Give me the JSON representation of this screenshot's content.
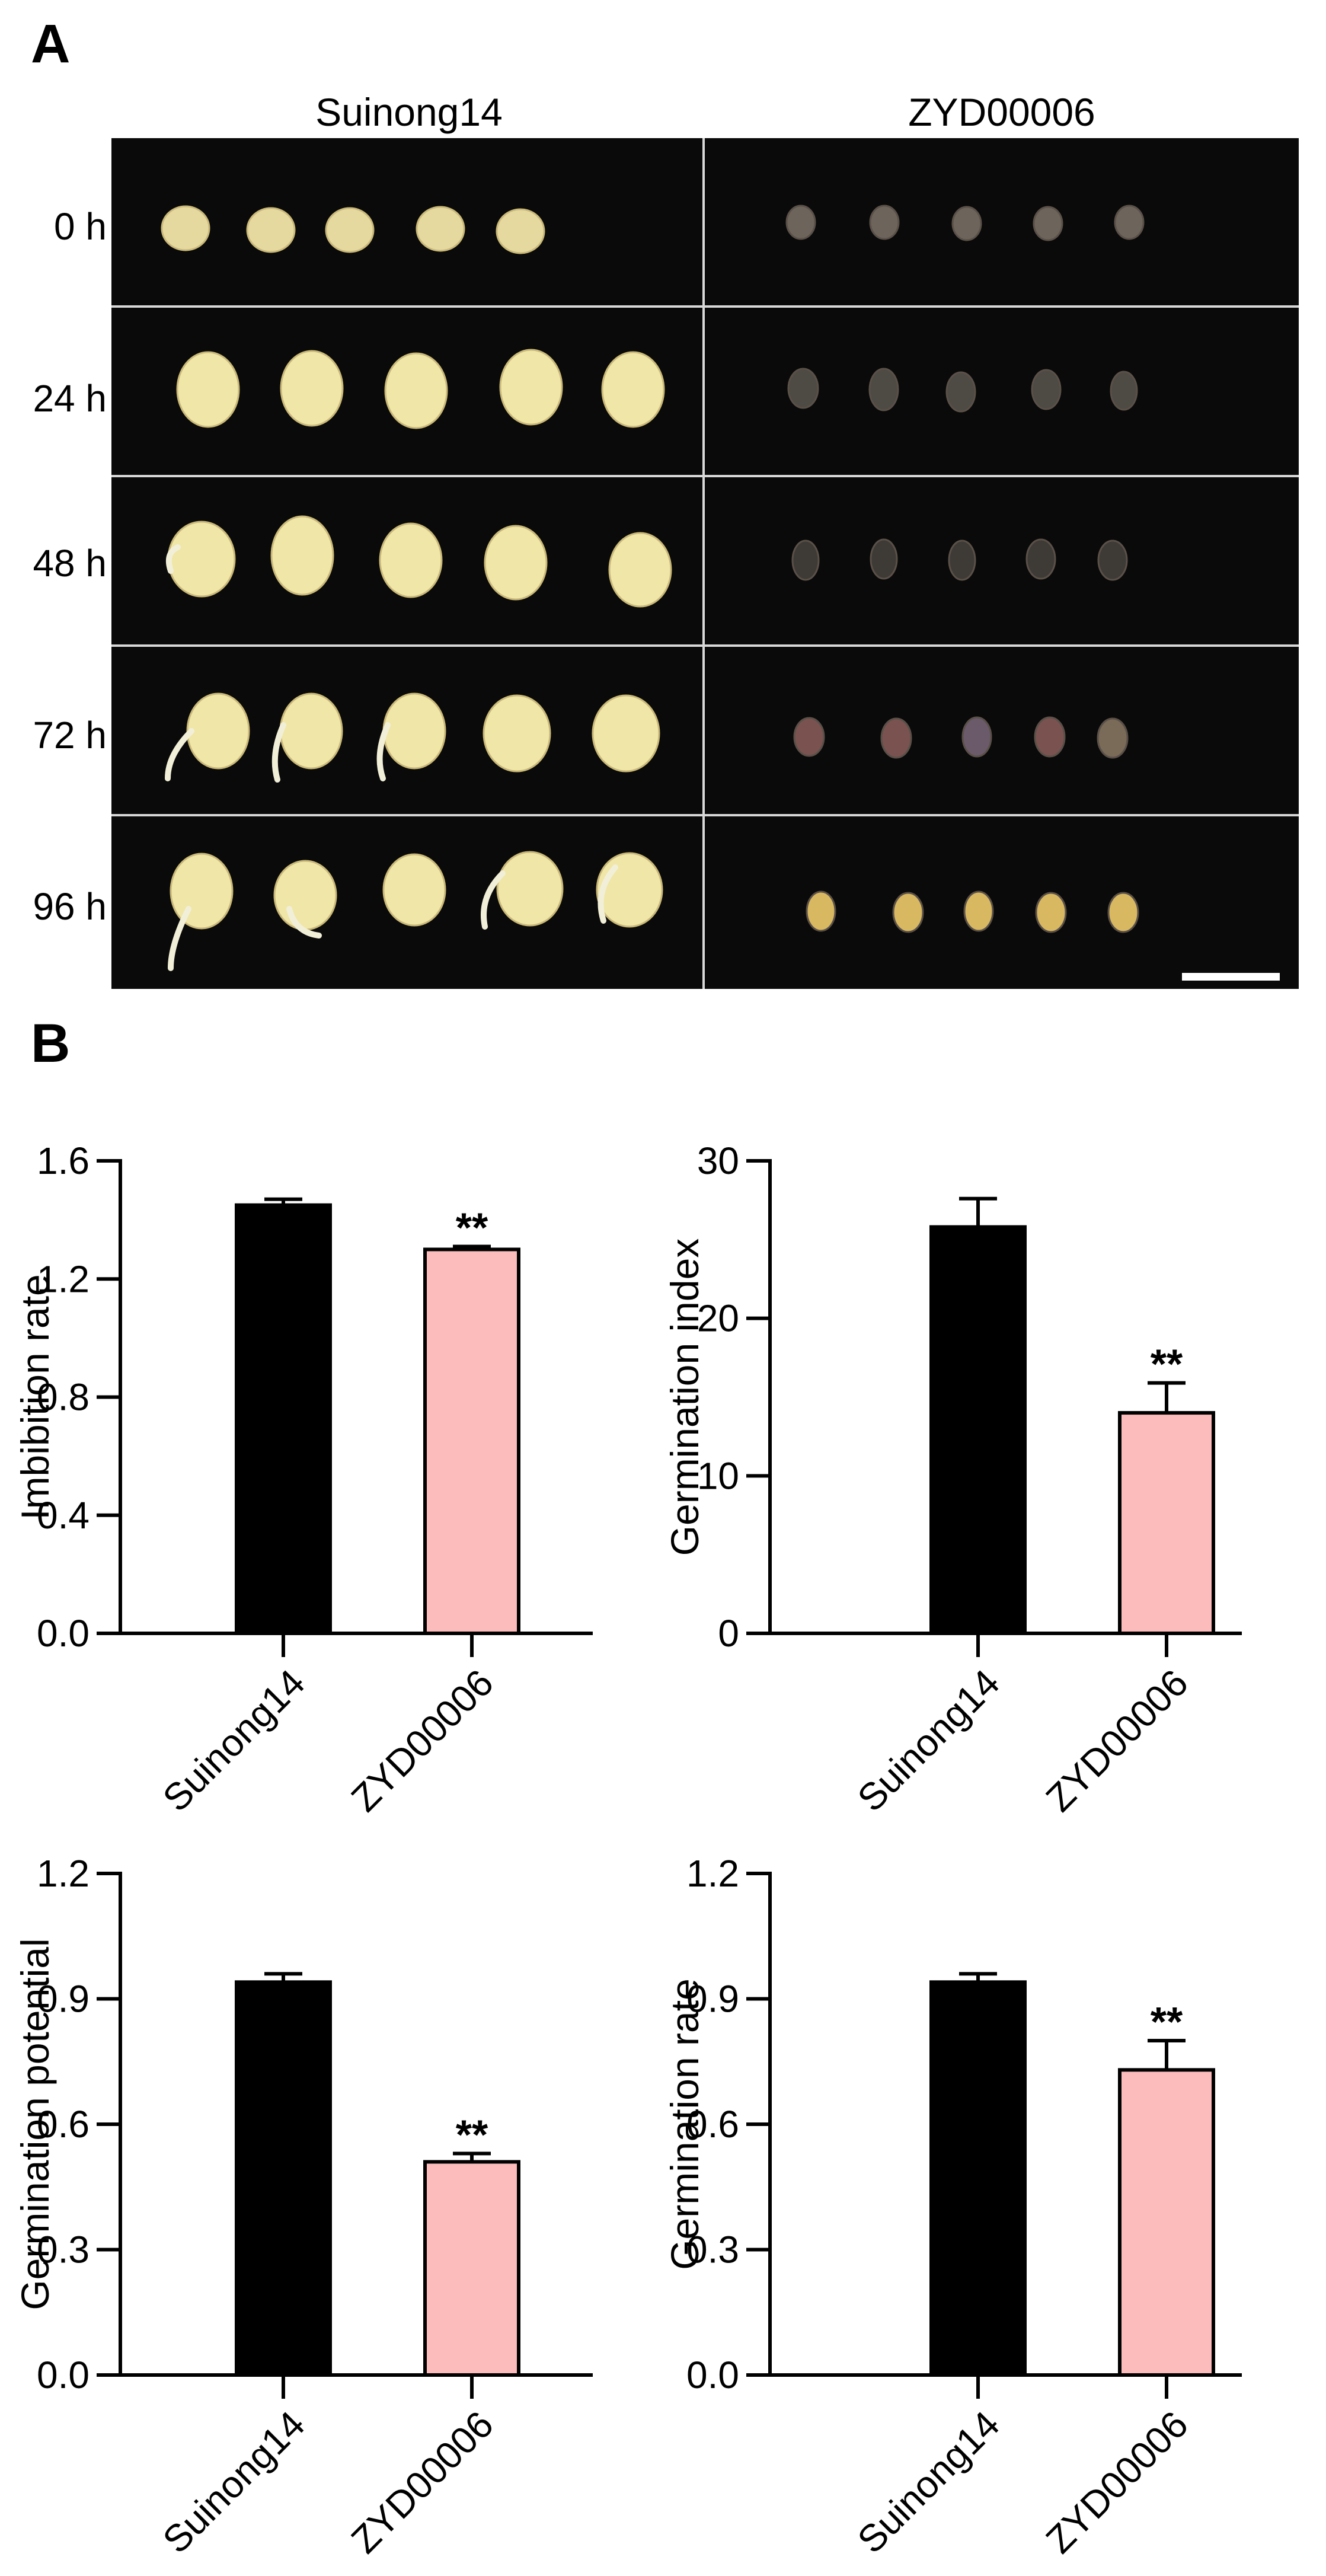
{
  "panels": {
    "a_label": "A",
    "b_label": "B"
  },
  "photo_panel": {
    "columns": [
      "Suinong14",
      "ZYD00006"
    ],
    "rows": [
      "0 h",
      "24 h",
      "48 h",
      "72 h",
      "96 h"
    ]
  },
  "chart_data": [
    {
      "type": "bar",
      "categories": [
        "Suinong14",
        "ZYD00006"
      ],
      "values": [
        1.45,
        1.3
      ],
      "errors": [
        0.02,
        0.01
      ],
      "significance": [
        "",
        "**"
      ],
      "colors": [
        "#000000",
        "#fdbcbc"
      ],
      "xlabel": "",
      "ylabel": "Imbibition rate",
      "ylim": [
        0,
        1.6
      ],
      "yticks": [
        "0.0",
        "0.4",
        "0.8",
        "1.2",
        "1.6"
      ],
      "grid": false
    },
    {
      "type": "bar",
      "categories": [
        "Suinong14",
        "ZYD00006"
      ],
      "values": [
        25.8,
        14.0
      ],
      "errors": [
        1.8,
        1.9
      ],
      "significance": [
        "",
        "**"
      ],
      "colors": [
        "#000000",
        "#fdbcbc"
      ],
      "xlabel": "",
      "ylabel": "Germination index",
      "ylim": [
        0,
        30
      ],
      "yticks": [
        "0",
        "10",
        "20",
        "30"
      ],
      "grid": false
    },
    {
      "type": "bar",
      "categories": [
        "Suinong14",
        "ZYD00006"
      ],
      "values": [
        0.94,
        0.51
      ],
      "errors": [
        0.02,
        0.02
      ],
      "significance": [
        "",
        "**"
      ],
      "colors": [
        "#000000",
        "#fdbcbc"
      ],
      "xlabel": "",
      "ylabel": "Germination potential",
      "ylim": [
        0,
        1.2
      ],
      "yticks": [
        "0.0",
        "0.3",
        "0.6",
        "0.9",
        "1.2"
      ],
      "grid": false
    },
    {
      "type": "bar",
      "categories": [
        "Suinong14",
        "ZYD00006"
      ],
      "values": [
        0.94,
        0.73
      ],
      "errors": [
        0.02,
        0.07
      ],
      "significance": [
        "",
        "**"
      ],
      "colors": [
        "#000000",
        "#fdbcbc"
      ],
      "xlabel": "",
      "ylabel": "Germination rate",
      "ylim": [
        0,
        1.2
      ],
      "yticks": [
        "0.0",
        "0.3",
        "0.6",
        "0.9",
        "1.2"
      ],
      "grid": false
    }
  ]
}
